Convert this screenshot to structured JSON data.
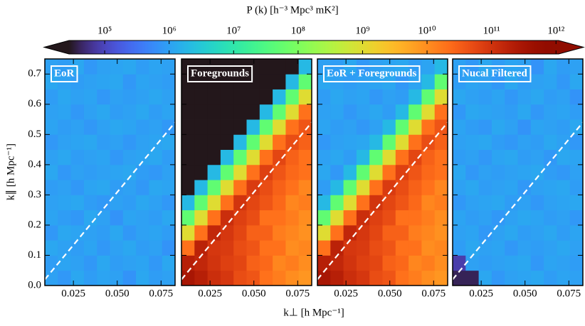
{
  "chart_data": {
    "type": "heatmap",
    "colorbar_label": "P (k)  [h⁻³ Mpc³ mK²]",
    "xlabel": "k⊥ [h Mpc⁻¹]",
    "ylabel": "k∥ [h Mpc⁻¹]",
    "colormap": "turbo",
    "log_color": true,
    "extend": "both",
    "clim": [
      28000,
      1100000000000.0
    ],
    "cticks": [
      {
        "value": 100000.0,
        "label": "10⁵"
      },
      {
        "value": 1000000.0,
        "label": "10⁶"
      },
      {
        "value": 10000000.0,
        "label": "10⁷"
      },
      {
        "value": 100000000.0,
        "label": "10⁸"
      },
      {
        "value": 1000000000.0,
        "label": "10⁹"
      },
      {
        "value": 10000000000.0,
        "label": "10¹⁰"
      },
      {
        "value": 100000000000.0,
        "label": "10¹¹"
      },
      {
        "value": 1000000000000.0,
        "label": "10¹²"
      }
    ],
    "xlim": [
      0.0087,
      0.083
    ],
    "xticks": [
      0.025,
      {
        "value": 0.05,
        "label": "0.050"
      },
      0.075
    ],
    "ylim": [
      0,
      0.75
    ],
    "yticks": [
      {
        "value": 0,
        "label": "0.0"
      },
      0.1,
      0.2,
      0.3,
      0.4,
      0.5,
      0.6,
      0.7
    ],
    "horizon_line": {
      "x": [
        0.0087,
        0.083
      ],
      "y": [
        0.02,
        0.54
      ],
      "color": "#ffffff"
    },
    "panels": [
      {
        "label": "EoR",
        "z": [
          [
            1000000.0,
            800000.0,
            1200000.0,
            900000.0,
            1100000.0,
            1000000.0,
            700000.0,
            1200000.0,
            900000.0,
            1000000.0
          ],
          [
            900000.0,
            1100000.0,
            1000000.0,
            800000.0,
            1200000.0,
            900000.0,
            1000000.0,
            1100000.0,
            800000.0,
            1200000.0
          ],
          [
            1200000.0,
            1000000.0,
            900000.0,
            1100000.0,
            800000.0,
            1000000.0,
            1200000.0,
            900000.0,
            1000000.0,
            700000.0
          ],
          [
            800000.0,
            1200000.0,
            1100000.0,
            1000000.0,
            900000.0,
            1200000.0,
            800000.0,
            1000000.0,
            1100000.0,
            900000.0
          ],
          [
            1100000.0,
            900000.0,
            800000.0,
            1200000.0,
            1000000.0,
            700000.0,
            1100000.0,
            1000000.0,
            900000.0,
            1200000.0
          ],
          [
            1000000.0,
            1100000.0,
            1200000.0,
            900000.0,
            800000.0,
            1000000.0,
            900000.0,
            1200000.0,
            1000000.0,
            800000.0
          ],
          [
            900000.0,
            1000000.0,
            800000.0,
            1100000.0,
            1200000.0,
            900000.0,
            1000000.0,
            800000.0,
            1200000.0,
            1100000.0
          ],
          [
            1200000.0,
            800000.0,
            1000000.0,
            900000.0,
            1000000.0,
            1100000.0,
            1200000.0,
            900000.0,
            800000.0,
            1000000.0
          ],
          [
            1000000.0,
            1200000.0,
            900000.0,
            1000000.0,
            1100000.0,
            800000.0,
            1000000.0,
            1100000.0,
            1200000.0,
            900000.0
          ],
          [
            800000.0,
            1000000.0,
            1100000.0,
            1200000.0,
            900000.0,
            1000000.0,
            800000.0,
            1000000.0,
            1100000.0,
            1200000.0
          ],
          [
            1100000.0,
            900000.0,
            1000000.0,
            800000.0,
            1000000.0,
            1200000.0,
            1100000.0,
            900000.0,
            1000000.0,
            800000.0
          ],
          [
            1000000.0,
            1100000.0,
            800000.0,
            1000000.0,
            1200000.0,
            900000.0,
            1000000.0,
            1200000.0,
            900000.0,
            1100000.0
          ],
          [
            900000.0,
            1200000.0,
            1000000.0,
            1100000.0,
            800000.0,
            1000000.0,
            900000.0,
            1000000.0,
            1200000.0,
            1000000.0
          ],
          [
            1200000.0,
            1000000.0,
            900000.0,
            1000000.0,
            1100000.0,
            1200000.0,
            800000.0,
            1100000.0,
            1000000.0,
            900000.0
          ],
          [
            1000000.0,
            900000.0,
            1200000.0,
            800000.0,
            1000000.0,
            1100000.0,
            1200000.0,
            900000.0,
            1100000.0,
            1000000.0
          ]
        ]
      },
      {
        "label": "Foregrounds",
        "z": [
          [
            300000000000.0,
            200000000000.0,
            120000000000.0,
            90000000000.0,
            50000000000.0,
            40000000000.0,
            20000000000.0,
            15000000000.0,
            10000000000.0,
            8000000000.0
          ],
          [
            200000000000.0,
            150000000000.0,
            100000000000.0,
            70000000000.0,
            60000000000.0,
            30000000000.0,
            25000000000.0,
            12000000000.0,
            15000000000.0,
            10000000000.0
          ],
          [
            20000000000.0,
            180000000000.0,
            90000000000.0,
            80000000000.0,
            50000000000.0,
            40000000000.0,
            20000000000.0,
            20000000000.0,
            10000000000.0,
            12000000000.0
          ],
          [
            1000000000.0,
            20000000000.0,
            150000000000.0,
            90000000000.0,
            60000000000.0,
            30000000000.0,
            30000000000.0,
            15000000000.0,
            12000000000.0,
            9000000000.0
          ],
          [
            50000000.0,
            1000000000.0,
            20000000000.0,
            120000000000.0,
            70000000000.0,
            50000000000.0,
            20000000000.0,
            20000000000.0,
            15000000000.0,
            10000000000.0
          ],
          [
            2000000.0,
            50000000.0,
            1000000000.0,
            20000000000.0,
            100000000000.0,
            60000000000.0,
            40000000000.0,
            25000000000.0,
            12000000000.0,
            15000000000.0
          ],
          [
            10000.0,
            2000000.0,
            50000000.0,
            1000000000.0,
            20000000000.0,
            80000000000.0,
            50000000000.0,
            30000000000.0,
            20000000000.0,
            12000000000.0
          ],
          [
            10000.0,
            10000.0,
            2000000.0,
            50000000.0,
            1000000000.0,
            20000000000.0,
            70000000000.0,
            40000000000.0,
            25000000000.0,
            20000000000.0
          ],
          [
            10000.0,
            10000.0,
            10000.0,
            2000000.0,
            50000000.0,
            1000000000.0,
            20000000000.0,
            60000000000.0,
            30000000000.0,
            20000000000.0
          ],
          [
            10000.0,
            10000.0,
            10000.0,
            10000.0,
            2000000.0,
            50000000.0,
            1000000000.0,
            20000000000.0,
            50000000000.0,
            30000000000.0
          ],
          [
            10000.0,
            10000.0,
            10000.0,
            10000.0,
            10000.0,
            2000000.0,
            50000000.0,
            1000000000.0,
            20000000000.0,
            40000000000.0
          ],
          [
            10000.0,
            10000.0,
            10000.0,
            10000.0,
            10000.0,
            10000.0,
            2000000.0,
            50000000.0,
            1000000000.0,
            20000000000.0
          ],
          [
            10000.0,
            10000.0,
            10000.0,
            10000.0,
            10000.0,
            10000.0,
            10000.0,
            2000000.0,
            50000000.0,
            1000000000.0
          ],
          [
            10000.0,
            10000.0,
            10000.0,
            10000.0,
            10000.0,
            10000.0,
            10000.0,
            10000.0,
            2000000.0,
            50000000.0
          ],
          [
            10000.0,
            10000.0,
            10000.0,
            10000.0,
            10000.0,
            10000.0,
            10000.0,
            10000.0,
            10000.0,
            2000000.0
          ]
        ]
      },
      {
        "label": "EoR + Foregrounds",
        "z": [
          [
            300000000000.0,
            200000000000.0,
            120000000000.0,
            90000000000.0,
            50000000000.0,
            40000000000.0,
            20000000000.0,
            15000000000.0,
            10000000000.0,
            8000000000.0
          ],
          [
            200000000000.0,
            150000000000.0,
            100000000000.0,
            70000000000.0,
            60000000000.0,
            30000000000.0,
            25000000000.0,
            12000000000.0,
            15000000000.0,
            10000000000.0
          ],
          [
            20000000000.0,
            180000000000.0,
            90000000000.0,
            80000000000.0,
            50000000000.0,
            40000000000.0,
            20000000000.0,
            20000000000.0,
            10000000000.0,
            12000000000.0
          ],
          [
            1000000000.0,
            20000000000.0,
            150000000000.0,
            90000000000.0,
            60000000000.0,
            30000000000.0,
            30000000000.0,
            15000000000.0,
            12000000000.0,
            9000000000.0
          ],
          [
            50000000.0,
            1000000000.0,
            20000000000.0,
            120000000000.0,
            70000000000.0,
            50000000000.0,
            20000000000.0,
            20000000000.0,
            15000000000.0,
            10000000000.0
          ],
          [
            2000000.0,
            50000000.0,
            1000000000.0,
            20000000000.0,
            100000000000.0,
            60000000000.0,
            40000000000.0,
            25000000000.0,
            12000000000.0,
            15000000000.0
          ],
          [
            900000.0,
            2000000.0,
            50000000.0,
            1000000000.0,
            20000000000.0,
            80000000000.0,
            50000000000.0,
            30000000000.0,
            20000000000.0,
            12000000000.0
          ],
          [
            1200000.0,
            800000.0,
            2000000.0,
            50000000.0,
            1000000000.0,
            20000000000.0,
            70000000000.0,
            40000000000.0,
            25000000000.0,
            20000000000.0
          ],
          [
            1000000.0,
            1200000.0,
            900000.0,
            2000000.0,
            50000000.0,
            1000000000.0,
            20000000000.0,
            60000000000.0,
            30000000000.0,
            20000000000.0
          ],
          [
            800000.0,
            1000000.0,
            1100000.0,
            1200000.0,
            2000000.0,
            50000000.0,
            1000000000.0,
            20000000000.0,
            50000000000.0,
            30000000000.0
          ],
          [
            1100000.0,
            900000.0,
            1000000.0,
            800000.0,
            1000000.0,
            2000000.0,
            50000000.0,
            1000000000.0,
            20000000000.0,
            40000000000.0
          ],
          [
            1000000.0,
            1100000.0,
            800000.0,
            1000000.0,
            1200000.0,
            900000.0,
            2000000.0,
            50000000.0,
            1000000000.0,
            20000000000.0
          ],
          [
            900000.0,
            1200000.0,
            1000000.0,
            1100000.0,
            800000.0,
            1000000.0,
            900000.0,
            2000000.0,
            50000000.0,
            1000000000.0
          ],
          [
            1200000.0,
            1000000.0,
            900000.0,
            1000000.0,
            1100000.0,
            1200000.0,
            800000.0,
            1100000.0,
            2000000.0,
            50000000.0
          ],
          [
            1000000.0,
            900000.0,
            1200000.0,
            800000.0,
            1000000.0,
            1100000.0,
            1200000.0,
            900000.0,
            1100000.0,
            2000000.0
          ]
        ]
      },
      {
        "label": "Nucal Filtered",
        "z": [
          [
            40000.0,
            40000.0,
            1200000.0,
            800000.0,
            1000000.0,
            1100000.0,
            1200000.0,
            900000.0,
            1100000.0,
            1000000.0
          ],
          [
            80000.0,
            1000000.0,
            900000.0,
            1000000.0,
            1100000.0,
            1200000.0,
            800000.0,
            1100000.0,
            1000000.0,
            900000.0
          ],
          [
            900000.0,
            1200000.0,
            1000000.0,
            1100000.0,
            800000.0,
            1000000.0,
            900000.0,
            1000000.0,
            1200000.0,
            1000000.0
          ],
          [
            1000000.0,
            1100000.0,
            800000.0,
            1000000.0,
            1200000.0,
            900000.0,
            1000000.0,
            1200000.0,
            900000.0,
            1100000.0
          ],
          [
            1100000.0,
            900000.0,
            1000000.0,
            800000.0,
            1000000.0,
            1200000.0,
            1100000.0,
            900000.0,
            1000000.0,
            800000.0
          ],
          [
            800000.0,
            1000000.0,
            1100000.0,
            1200000.0,
            900000.0,
            1000000.0,
            800000.0,
            1000000.0,
            1100000.0,
            1200000.0
          ],
          [
            1000000.0,
            1200000.0,
            900000.0,
            1000000.0,
            1100000.0,
            800000.0,
            1000000.0,
            1100000.0,
            1200000.0,
            900000.0
          ],
          [
            1200000.0,
            800000.0,
            1000000.0,
            900000.0,
            1000000.0,
            1100000.0,
            1200000.0,
            900000.0,
            800000.0,
            1000000.0
          ],
          [
            900000.0,
            1000000.0,
            800000.0,
            1100000.0,
            1200000.0,
            900000.0,
            1000000.0,
            800000.0,
            1200000.0,
            1100000.0
          ],
          [
            1000000.0,
            1100000.0,
            1200000.0,
            900000.0,
            800000.0,
            1000000.0,
            900000.0,
            1200000.0,
            1000000.0,
            800000.0
          ],
          [
            1100000.0,
            900000.0,
            800000.0,
            1200000.0,
            1000000.0,
            700000.0,
            1100000.0,
            1000000.0,
            900000.0,
            1200000.0
          ],
          [
            800000.0,
            1200000.0,
            1100000.0,
            1000000.0,
            900000.0,
            1200000.0,
            800000.0,
            1000000.0,
            1100000.0,
            900000.0
          ],
          [
            1200000.0,
            1000000.0,
            900000.0,
            1100000.0,
            800000.0,
            1000000.0,
            1200000.0,
            900000.0,
            1000000.0,
            700000.0
          ],
          [
            900000.0,
            1100000.0,
            1000000.0,
            800000.0,
            1200000.0,
            900000.0,
            1000000.0,
            1100000.0,
            800000.0,
            1200000.0
          ],
          [
            1000000.0,
            800000.0,
            1200000.0,
            900000.0,
            1100000.0,
            1000000.0,
            700000.0,
            1200000.0,
            900000.0,
            1000000.0
          ]
        ]
      }
    ]
  }
}
